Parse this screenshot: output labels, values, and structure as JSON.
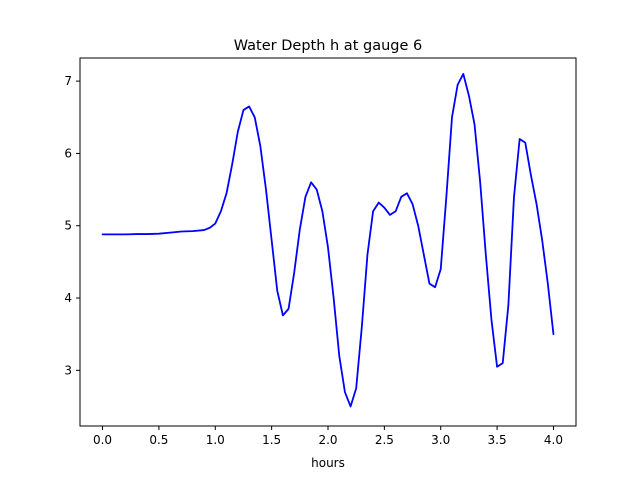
{
  "chart_data": {
    "type": "line",
    "title": "Water Depth h at gauge 6",
    "xlabel": "hours",
    "ylabel": "",
    "xlim": [
      -0.2,
      4.2
    ],
    "ylim": [
      2.23,
      7.32
    ],
    "xticks": [
      0.0,
      0.5,
      1.0,
      1.5,
      2.0,
      2.5,
      3.0,
      3.5,
      4.0
    ],
    "xtick_labels": [
      "0.0",
      "0.5",
      "1.0",
      "1.5",
      "2.0",
      "2.5",
      "3.0",
      "3.5",
      "4.0"
    ],
    "yticks": [
      3,
      4,
      5,
      6,
      7
    ],
    "ytick_labels": [
      "3",
      "4",
      "5",
      "6",
      "7"
    ],
    "grid": false,
    "series": [
      {
        "color": "#0000ff",
        "x": [
          0.0,
          0.1,
          0.2,
          0.3,
          0.4,
          0.5,
          0.6,
          0.7,
          0.8,
          0.9,
          0.95,
          1.0,
          1.05,
          1.1,
          1.15,
          1.2,
          1.25,
          1.3,
          1.35,
          1.4,
          1.45,
          1.5,
          1.55,
          1.6,
          1.65,
          1.7,
          1.75,
          1.8,
          1.85,
          1.9,
          1.95,
          2.0,
          2.05,
          2.1,
          2.15,
          2.2,
          2.25,
          2.3,
          2.35,
          2.4,
          2.45,
          2.5,
          2.55,
          2.6,
          2.65,
          2.7,
          2.75,
          2.8,
          2.85,
          2.9,
          2.95,
          3.0,
          3.05,
          3.1,
          3.15,
          3.2,
          3.25,
          3.3,
          3.35,
          3.4,
          3.45,
          3.5,
          3.55,
          3.6,
          3.65,
          3.7,
          3.75,
          3.8,
          3.85,
          3.9,
          3.95,
          4.0
        ],
        "y": [
          4.88,
          4.88,
          4.88,
          4.885,
          4.885,
          4.89,
          4.905,
          4.92,
          4.925,
          4.94,
          4.97,
          5.03,
          5.2,
          5.45,
          5.85,
          6.3,
          6.6,
          6.65,
          6.5,
          6.1,
          5.5,
          4.8,
          4.1,
          3.76,
          3.85,
          4.35,
          4.95,
          5.4,
          5.6,
          5.5,
          5.2,
          4.7,
          4.0,
          3.2,
          2.7,
          2.5,
          2.75,
          3.6,
          4.6,
          5.2,
          5.32,
          5.25,
          5.15,
          5.2,
          5.4,
          5.45,
          5.3,
          5.0,
          4.6,
          4.2,
          4.15,
          4.4,
          5.4,
          6.5,
          6.95,
          7.1,
          6.8,
          6.4,
          5.6,
          4.6,
          3.7,
          3.05,
          3.1,
          3.9,
          5.4,
          6.2,
          6.15,
          5.7,
          5.3,
          4.8,
          4.2,
          3.5
        ]
      }
    ]
  }
}
